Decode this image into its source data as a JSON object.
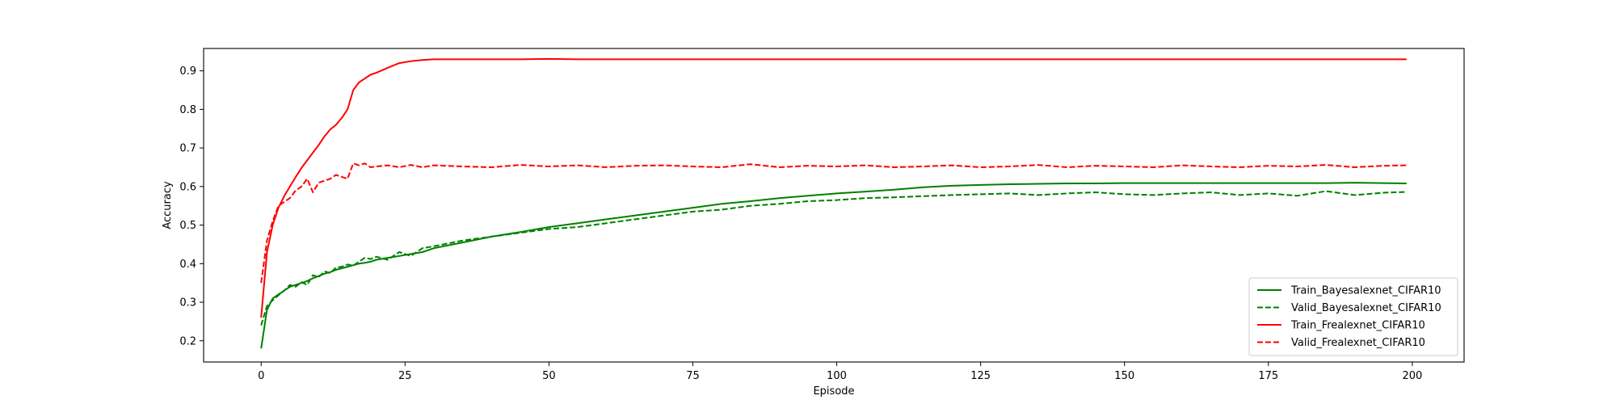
{
  "chart_data": {
    "type": "line",
    "title": "",
    "xlabel": "Episode",
    "ylabel": "Accuracy",
    "xlim": [
      -10,
      209
    ],
    "ylim": [
      0.145,
      0.958
    ],
    "xticks": [
      0,
      25,
      50,
      75,
      100,
      125,
      150,
      175,
      200
    ],
    "yticks": [
      0.2,
      0.3,
      0.4,
      0.5,
      0.6,
      0.7,
      0.8,
      0.9
    ],
    "x": [
      0,
      1,
      2,
      3,
      4,
      5,
      6,
      7,
      8,
      9,
      10,
      11,
      12,
      13,
      14,
      15,
      16,
      17,
      18,
      19,
      20,
      22,
      24,
      26,
      28,
      30,
      35,
      40,
      45,
      50,
      55,
      60,
      65,
      70,
      75,
      80,
      85,
      90,
      95,
      100,
      105,
      110,
      115,
      120,
      125,
      130,
      135,
      140,
      145,
      150,
      155,
      160,
      165,
      170,
      175,
      180,
      185,
      190,
      195,
      199
    ],
    "legend_position": "lower right",
    "grid": false,
    "series": [
      {
        "name": "Train_Bayesalexnet_CIFAR10",
        "color": "#008000",
        "style": "solid",
        "values": [
          0.18,
          0.28,
          0.31,
          0.32,
          0.33,
          0.34,
          0.345,
          0.35,
          0.355,
          0.362,
          0.368,
          0.374,
          0.378,
          0.384,
          0.388,
          0.392,
          0.396,
          0.4,
          0.402,
          0.405,
          0.41,
          0.415,
          0.42,
          0.425,
          0.43,
          0.44,
          0.455,
          0.47,
          0.482,
          0.495,
          0.505,
          0.515,
          0.525,
          0.535,
          0.545,
          0.555,
          0.562,
          0.57,
          0.576,
          0.582,
          0.587,
          0.592,
          0.598,
          0.602,
          0.604,
          0.606,
          0.607,
          0.608,
          0.608,
          0.609,
          0.609,
          0.609,
          0.609,
          0.609,
          0.609,
          0.609,
          0.609,
          0.61,
          0.609,
          0.608
        ]
      },
      {
        "name": "Valid_Bayesalexnet_CIFAR10",
        "color": "#008000",
        "style": "dashed",
        "values": [
          0.24,
          0.29,
          0.305,
          0.318,
          0.33,
          0.345,
          0.34,
          0.352,
          0.345,
          0.37,
          0.365,
          0.38,
          0.375,
          0.39,
          0.392,
          0.398,
          0.395,
          0.405,
          0.415,
          0.412,
          0.418,
          0.41,
          0.43,
          0.42,
          0.44,
          0.445,
          0.46,
          0.47,
          0.48,
          0.49,
          0.495,
          0.505,
          0.515,
          0.525,
          0.535,
          0.54,
          0.55,
          0.555,
          0.562,
          0.565,
          0.57,
          0.572,
          0.575,
          0.578,
          0.58,
          0.582,
          0.578,
          0.582,
          0.585,
          0.58,
          0.578,
          0.582,
          0.585,
          0.578,
          0.582,
          0.576,
          0.588,
          0.578,
          0.584,
          0.586
        ]
      },
      {
        "name": "Train_Frealexnet_CIFAR10",
        "color": "#ff0000",
        "style": "solid",
        "values": [
          0.26,
          0.43,
          0.5,
          0.545,
          0.575,
          0.6,
          0.625,
          0.648,
          0.668,
          0.688,
          0.708,
          0.73,
          0.748,
          0.76,
          0.778,
          0.8,
          0.85,
          0.87,
          0.88,
          0.89,
          0.895,
          0.908,
          0.92,
          0.925,
          0.928,
          0.93,
          0.93,
          0.93,
          0.93,
          0.931,
          0.93,
          0.93,
          0.93,
          0.93,
          0.93,
          0.93,
          0.93,
          0.93,
          0.93,
          0.93,
          0.93,
          0.93,
          0.93,
          0.93,
          0.93,
          0.93,
          0.93,
          0.93,
          0.93,
          0.93,
          0.93,
          0.93,
          0.93,
          0.93,
          0.93,
          0.93,
          0.93,
          0.93,
          0.93,
          0.93
        ]
      },
      {
        "name": "Valid_Frealexnet_CIFAR10",
        "color": "#ff0000",
        "style": "dashed",
        "values": [
          0.35,
          0.46,
          0.51,
          0.55,
          0.56,
          0.57,
          0.59,
          0.6,
          0.62,
          0.585,
          0.61,
          0.615,
          0.62,
          0.63,
          0.625,
          0.62,
          0.66,
          0.655,
          0.66,
          0.65,
          0.652,
          0.655,
          0.65,
          0.656,
          0.65,
          0.655,
          0.652,
          0.65,
          0.656,
          0.652,
          0.655,
          0.65,
          0.654,
          0.655,
          0.652,
          0.65,
          0.658,
          0.65,
          0.654,
          0.652,
          0.655,
          0.65,
          0.652,
          0.655,
          0.65,
          0.652,
          0.656,
          0.65,
          0.654,
          0.652,
          0.65,
          0.655,
          0.652,
          0.65,
          0.654,
          0.652,
          0.656,
          0.65,
          0.654,
          0.655
        ]
      }
    ]
  }
}
